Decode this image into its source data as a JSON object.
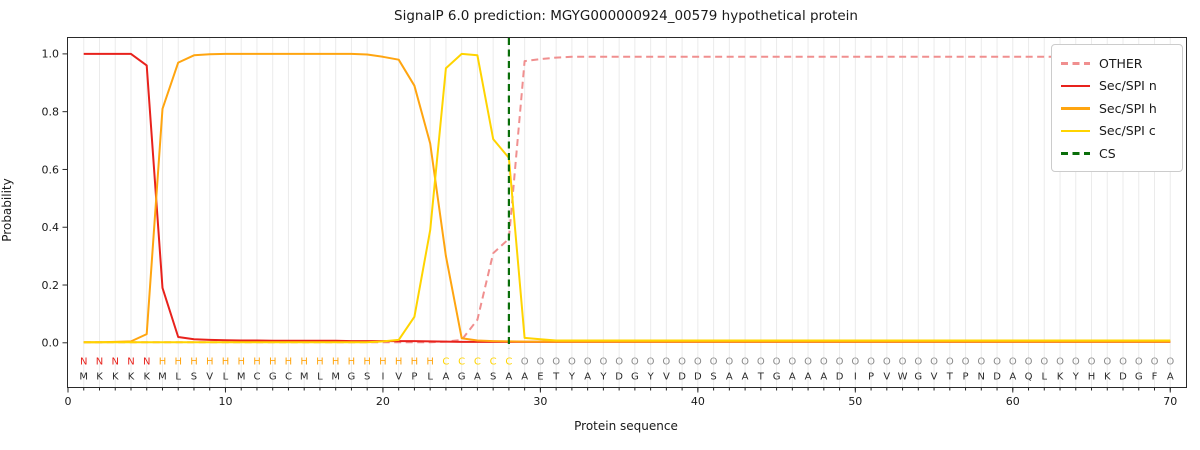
{
  "chart_data": {
    "type": "line",
    "title": "SignalP 6.0 prediction: MGYG000000924_00579 hypothetical protein",
    "xlabel": "Protein sequence",
    "ylabel": "Probability",
    "xlim": [
      0,
      71
    ],
    "ylim": [
      -0.153,
      1.055
    ],
    "xticks": [
      0,
      10,
      20,
      30,
      40,
      50,
      60,
      70
    ],
    "yticks": [
      "0.0",
      "0.2",
      "0.4",
      "0.6",
      "0.8",
      "1.0"
    ],
    "grid": "vertical gridlines at every sequence position 1-70",
    "legend_position": "upper right",
    "sequence": "MKKKKMLSVLMCGCMLMGSIVPLAGASAAETYAYDGYVDDSAATGAAADIPVWGVTPNDAQLKYHKDGFA",
    "region_labels": "NNNNNHHHHHHHHHHHHHHHHHHCCCCCOOOOOOOOOOOOOOOOOOOOOOOOOOOOOOOOOOOOOOOOOO",
    "label_colors": {
      "N": "#e8221c",
      "H": "#ffa510",
      "C": "#ffd400",
      "O": "#8c8c8c"
    },
    "sequence_color": "#2b2b2b",
    "grid_color": "#ebebeb",
    "series": [
      {
        "name": "OTHER",
        "color": "#f08f8f",
        "style": "dashed",
        "values": [
          0.002,
          0.002,
          0.002,
          0.002,
          0.002,
          0.002,
          0.002,
          0.002,
          0.002,
          0.002,
          0.002,
          0.002,
          0.002,
          0.002,
          0.002,
          0.002,
          0.002,
          0.002,
          0.002,
          0.002,
          0.002,
          0.002,
          0.002,
          0.004,
          0.01,
          0.08,
          0.31,
          0.36,
          0.975,
          0.982,
          0.987,
          0.99,
          0.99,
          0.99,
          0.99,
          0.99,
          0.99,
          0.99,
          0.99,
          0.99,
          0.99,
          0.99,
          0.99,
          0.99,
          0.99,
          0.99,
          0.99,
          0.99,
          0.99,
          0.99,
          0.99,
          0.99,
          0.99,
          0.99,
          0.99,
          0.99,
          0.99,
          0.99,
          0.99,
          0.99,
          0.99,
          0.99,
          0.99,
          0.99,
          0.99,
          0.99,
          0.99,
          0.99,
          0.99,
          0.99
        ]
      },
      {
        "name": "Sec/SPI n",
        "color": "#e8221c",
        "style": "solid",
        "values": [
          1.0,
          1.0,
          1.0,
          1.0,
          0.96,
          0.19,
          0.02,
          0.012,
          0.01,
          0.009,
          0.008,
          0.008,
          0.007,
          0.007,
          0.007,
          0.007,
          0.007,
          0.006,
          0.006,
          0.006,
          0.006,
          0.006,
          0.005,
          0.004,
          0.003,
          0.003,
          0.003,
          0.003,
          0.003,
          0.003,
          0.003,
          0.003,
          0.003,
          0.003,
          0.003,
          0.003,
          0.003,
          0.003,
          0.003,
          0.003,
          0.003,
          0.003,
          0.003,
          0.003,
          0.003,
          0.003,
          0.003,
          0.003,
          0.003,
          0.003,
          0.003,
          0.003,
          0.003,
          0.003,
          0.003,
          0.003,
          0.003,
          0.003,
          0.003,
          0.003,
          0.003,
          0.003,
          0.003,
          0.003,
          0.003,
          0.003,
          0.003,
          0.003,
          0.003,
          0.003
        ]
      },
      {
        "name": "Sec/SPI h",
        "color": "#ffa510",
        "style": "solid",
        "values": [
          0.002,
          0.002,
          0.003,
          0.005,
          0.03,
          0.81,
          0.97,
          0.995,
          0.999,
          1.0,
          1.0,
          1.0,
          1.0,
          1.0,
          1.0,
          1.0,
          1.0,
          1.0,
          0.998,
          0.99,
          0.98,
          0.89,
          0.69,
          0.3,
          0.016,
          0.008,
          0.006,
          0.005,
          0.004,
          0.004,
          0.004,
          0.004,
          0.004,
          0.004,
          0.004,
          0.004,
          0.004,
          0.004,
          0.004,
          0.004,
          0.004,
          0.004,
          0.004,
          0.004,
          0.004,
          0.004,
          0.004,
          0.004,
          0.004,
          0.004,
          0.004,
          0.004,
          0.004,
          0.004,
          0.004,
          0.004,
          0.004,
          0.004,
          0.004,
          0.004,
          0.004,
          0.004,
          0.004,
          0.004,
          0.004,
          0.004,
          0.004,
          0.004,
          0.004,
          0.004
        ]
      },
      {
        "name": "Sec/SPI c",
        "color": "#ffd400",
        "style": "solid",
        "values": [
          0.002,
          0.002,
          0.002,
          0.002,
          0.002,
          0.002,
          0.002,
          0.002,
          0.002,
          0.002,
          0.002,
          0.002,
          0.002,
          0.002,
          0.002,
          0.002,
          0.002,
          0.002,
          0.002,
          0.005,
          0.01,
          0.09,
          0.39,
          0.95,
          1.0,
          0.995,
          0.705,
          0.64,
          0.017,
          0.012,
          0.008,
          0.008,
          0.008,
          0.008,
          0.008,
          0.008,
          0.008,
          0.008,
          0.008,
          0.008,
          0.008,
          0.008,
          0.008,
          0.008,
          0.008,
          0.008,
          0.008,
          0.008,
          0.008,
          0.008,
          0.008,
          0.008,
          0.008,
          0.008,
          0.008,
          0.008,
          0.008,
          0.008,
          0.008,
          0.008,
          0.008,
          0.008,
          0.008,
          0.008,
          0.008,
          0.008,
          0.008,
          0.008,
          0.008,
          0.008
        ]
      },
      {
        "name": "CS",
        "color": "#0a6e0a",
        "style": "dashed-vertical",
        "position": 28
      }
    ]
  }
}
